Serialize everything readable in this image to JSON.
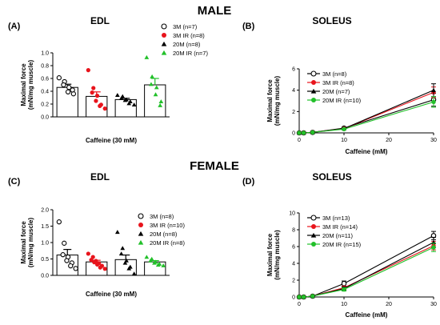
{
  "headings": {
    "male": "MALE",
    "female": "FEMALE"
  },
  "chart_data": [
    {
      "id": "A",
      "type": "bar",
      "panel_label": "(A)",
      "title": "EDL",
      "xlabel": "Caffeine (30 mM)",
      "ylabel": [
        "Maximal force",
        "(mN/mg muscle)"
      ],
      "ylim": [
        0,
        1.0
      ],
      "yticks": [
        "0.0",
        "0.2",
        "0.4",
        "0.6",
        "0.8",
        "1.0"
      ],
      "legend_position": "top-right",
      "series": [
        {
          "name": "3M (n=7)",
          "color": "#000000",
          "marker": "circle-open",
          "mean": 0.46,
          "sem": 0.05,
          "points": [
            0.61,
            0.55,
            0.5,
            0.46,
            0.39,
            0.36,
            0.42
          ]
        },
        {
          "name": "3M IR (n=8)",
          "color": "#e8141c",
          "marker": "circle-filled",
          "mean": 0.32,
          "sem": 0.07,
          "points": [
            0.73,
            0.45,
            0.38,
            0.33,
            0.25,
            0.19,
            0.17,
            0.13
          ]
        },
        {
          "name": "20M (n=8)",
          "color": "#000000",
          "marker": "triangle",
          "mean": 0.27,
          "sem": 0.02,
          "points": [
            0.34,
            0.32,
            0.29,
            0.27,
            0.26,
            0.24,
            0.21,
            0.19
          ]
        },
        {
          "name": "20M IR (n=7)",
          "color": "#22c02a",
          "marker": "triangle",
          "mean": 0.5,
          "sem": 0.1,
          "points": [
            0.93,
            0.63,
            0.51,
            0.46,
            0.35,
            0.24,
            0.18
          ]
        }
      ]
    },
    {
      "id": "B",
      "type": "line",
      "panel_label": "(B)",
      "title": "SOLEUS",
      "xlabel": "Caffeine (mM)",
      "ylabel": [
        "Maximal force",
        "(mN/mg muscle)"
      ],
      "xlim": [
        0,
        30
      ],
      "ylim": [
        0,
        6
      ],
      "xticks": [
        "0",
        "10",
        "20",
        "30"
      ],
      "yticks": [
        "0",
        "2",
        "4",
        "6"
      ],
      "legend_position": "top-left",
      "x": [
        0,
        1,
        3,
        10,
        30
      ],
      "series": [
        {
          "name": "3M (n=8)",
          "color": "#000000",
          "marker": "circle-open",
          "values": [
            0,
            0,
            0.05,
            0.45,
            3.1
          ],
          "err": [
            0,
            0,
            0,
            0.08,
            0.6
          ]
        },
        {
          "name": "3M IR (n=8)",
          "color": "#e8141c",
          "marker": "circle-filled",
          "values": [
            0,
            0,
            0.05,
            0.4,
            3.8
          ],
          "err": [
            0,
            0,
            0,
            0.06,
            0.5
          ]
        },
        {
          "name": "20M (n=7)",
          "color": "#000000",
          "marker": "triangle",
          "values": [
            0,
            0,
            0.05,
            0.4,
            4.0
          ],
          "err": [
            0,
            0,
            0,
            0.06,
            0.6
          ]
        },
        {
          "name": "20M IR (n=10)",
          "color": "#22c02a",
          "marker": "circle-filled",
          "values": [
            0,
            0,
            0.05,
            0.35,
            2.9
          ],
          "err": [
            0,
            0,
            0,
            0.05,
            0.5
          ]
        }
      ]
    },
    {
      "id": "C",
      "type": "bar",
      "panel_label": "(C)",
      "title": "EDL",
      "xlabel": "Caffeine (30 mM)",
      "ylabel": [
        "Maximal force",
        "(mN/mg muscle)"
      ],
      "ylim": [
        0,
        2.0
      ],
      "yticks": [
        "0.0",
        "0.5",
        "1.0",
        "1.5",
        "2.0"
      ],
      "legend_position": "top-right",
      "series": [
        {
          "name": "3M (n=8)",
          "color": "#000000",
          "marker": "circle-open",
          "mean": 0.62,
          "sem": 0.17,
          "points": [
            1.63,
            0.98,
            0.63,
            0.56,
            0.45,
            0.38,
            0.29,
            0.21
          ]
        },
        {
          "name": "3M IR (n=10)",
          "color": "#e8141c",
          "marker": "circle-filled",
          "mean": 0.41,
          "sem": 0.05,
          "points": [
            0.66,
            0.56,
            0.47,
            0.44,
            0.4,
            0.37,
            0.33,
            0.29,
            0.24,
            0.2
          ]
        },
        {
          "name": "20M (n=8)",
          "color": "#000000",
          "marker": "triangle",
          "mean": 0.48,
          "sem": 0.14,
          "points": [
            1.32,
            0.83,
            0.66,
            0.45,
            0.38,
            0.26,
            0.21,
            0.05
          ]
        },
        {
          "name": "20M IR (n=8)",
          "color": "#22c02a",
          "marker": "triangle",
          "mean": 0.41,
          "sem": 0.04,
          "points": [
            0.56,
            0.5,
            0.45,
            0.41,
            0.38,
            0.35,
            0.32,
            0.3
          ]
        }
      ]
    },
    {
      "id": "D",
      "type": "line",
      "panel_label": "(D)",
      "title": "SOLEUS",
      "xlabel": "Caffeine (mM)",
      "ylabel": [
        "Maximal force",
        "(mN/mg muscle)"
      ],
      "xlim": [
        0,
        30
      ],
      "ylim": [
        0,
        10
      ],
      "xticks": [
        "0",
        "10",
        "20",
        "30"
      ],
      "yticks": [
        "0",
        "2",
        "4",
        "6",
        "8",
        "10"
      ],
      "legend_position": "top-left",
      "x": [
        0,
        1,
        3,
        10,
        30
      ],
      "series": [
        {
          "name": "3M (n=13)",
          "color": "#000000",
          "marker": "circle-open",
          "values": [
            0,
            0,
            0.1,
            1.6,
            7.3
          ],
          "err": [
            0,
            0,
            0,
            0.3,
            0.5
          ]
        },
        {
          "name": "3M IR (n=14)",
          "color": "#e8141c",
          "marker": "circle-filled",
          "values": [
            0,
            0,
            0.1,
            1.1,
            6.1
          ],
          "err": [
            0,
            0,
            0,
            0.2,
            0.5
          ]
        },
        {
          "name": "20M (n=11)",
          "color": "#000000",
          "marker": "triangle",
          "values": [
            0,
            0,
            0.1,
            1.0,
            6.5
          ],
          "err": [
            0,
            0,
            0,
            0.2,
            0.6
          ]
        },
        {
          "name": "20M IR (n=15)",
          "color": "#22c02a",
          "marker": "circle-filled",
          "values": [
            0,
            0,
            0.1,
            0.9,
            5.9
          ],
          "err": [
            0,
            0,
            0,
            0.2,
            0.5
          ]
        }
      ]
    }
  ]
}
